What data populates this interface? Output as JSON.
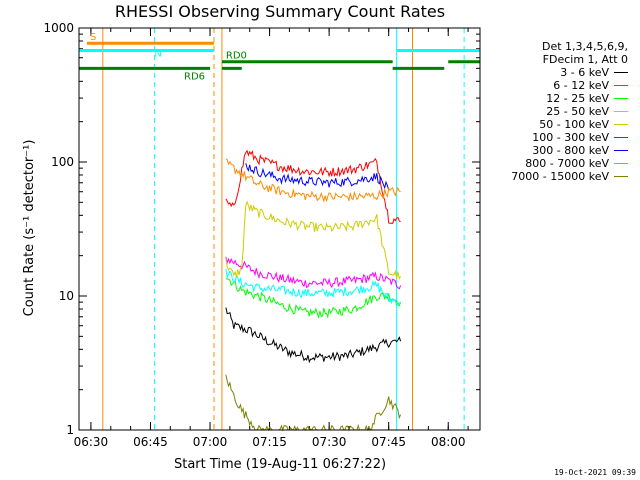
{
  "chart_data": {
    "type": "line",
    "title": "RHESSI Observing Summary Count Rates",
    "xlabel": "Start Time (19-Aug-11 06:27:22)",
    "ylabel": "Count Rate (s⁻¹ detector⁻¹)",
    "y_scale": "log",
    "ylim": [
      1,
      1000
    ],
    "xlim": [
      "06:27",
      "08:08"
    ],
    "x_ticks": [
      "06:30",
      "06:45",
      "07:00",
      "07:15",
      "07:30",
      "07:45",
      "08:00"
    ],
    "y_ticks": [
      "1",
      "10",
      "100",
      "1000"
    ],
    "legend_header": [
      "Det 1,3,4,5,6,9,",
      "FDecim 1, Att 0"
    ],
    "legend_placement": "right",
    "series": [
      {
        "name": "3 - 6 keV",
        "color": "#000000",
        "x": [
          "07:04",
          "07:06",
          "07:10",
          "07:15",
          "07:20",
          "07:25",
          "07:30",
          "07:35",
          "07:40",
          "07:45",
          "07:48"
        ],
        "y": [
          8,
          6,
          5.5,
          4.5,
          3.8,
          3.5,
          3.5,
          3.6,
          4,
          4.5,
          4.6
        ]
      },
      {
        "name": "6 - 12 keV",
        "color": "#ff00ff",
        "x": [
          "07:04",
          "07:08",
          "07:12",
          "07:18",
          "07:24",
          "07:30",
          "07:36",
          "07:42",
          "07:45",
          "07:48"
        ],
        "y": [
          19,
          17,
          15,
          13.5,
          12.5,
          12.5,
          13,
          14,
          13,
          12
        ]
      },
      {
        "name": "12 - 25 keV",
        "color": "#00ff00",
        "x": [
          "07:04",
          "07:08",
          "07:12",
          "07:18",
          "07:24",
          "07:30",
          "07:36",
          "07:42",
          "07:45",
          "07:48"
        ],
        "y": [
          14,
          11,
          10,
          8.5,
          7.5,
          7.5,
          8,
          10,
          10,
          9
        ]
      },
      {
        "name": "25 - 50 keV",
        "color": "#00ffff",
        "x": [
          "07:04",
          "07:08",
          "07:12",
          "07:18",
          "07:24",
          "07:30",
          "07:36",
          "07:42",
          "07:45",
          "07:48"
        ],
        "y": [
          15,
          12.5,
          11.5,
          11,
          10.5,
          10.5,
          11,
          12,
          9.5,
          9
        ]
      },
      {
        "name": "50 - 100 keV",
        "color": "#cccc00",
        "x": [
          "07:04",
          "07:06",
          "07:08",
          "07:09",
          "07:12",
          "07:18",
          "07:24",
          "07:30",
          "07:36",
          "07:42",
          "07:45",
          "07:48"
        ],
        "y": [
          18,
          14,
          16,
          48,
          42,
          36,
          33,
          32,
          33,
          38,
          15,
          14
        ]
      },
      {
        "name": "100 - 300 keV",
        "color": "#ff0000",
        "x": [
          "07:04",
          "07:06",
          "07:09",
          "07:12",
          "07:18",
          "07:24",
          "07:30",
          "07:36",
          "07:42",
          "07:45",
          "07:48"
        ],
        "y": [
          50,
          45,
          120,
          105,
          92,
          85,
          84,
          88,
          100,
          38,
          36
        ]
      },
      {
        "name": "300 - 800 keV",
        "color": "#0000ff",
        "x": [
          "07:09",
          "07:12",
          "07:18",
          "07:24",
          "07:30",
          "07:36",
          "07:42",
          "07:45"
        ],
        "y": [
          95,
          85,
          75,
          72,
          70,
          72,
          78,
          62
        ]
      },
      {
        "name": "800 - 7000 keV",
        "color": "#ff8c00",
        "x": [
          "07:04",
          "07:06",
          "07:09",
          "07:12",
          "07:18",
          "07:24",
          "07:30",
          "07:36",
          "07:42",
          "07:45",
          "07:48"
        ],
        "y": [
          98,
          90,
          78,
          68,
          60,
          56,
          55,
          55,
          56,
          60,
          60
        ]
      },
      {
        "name": "7000 - 15000 keV",
        "color": "#808000",
        "x": [
          "07:04",
          "07:06",
          "07:08",
          "07:12",
          "07:40",
          "07:45",
          "07:48"
        ],
        "y": [
          2.5,
          1.8,
          1.4,
          1,
          1,
          1.7,
          1.3
        ]
      }
    ],
    "markers": {
      "vertical_lines": [
        {
          "time": "06:27",
          "color": "#00ffff",
          "style": "solid"
        },
        {
          "time": "06:33",
          "color": "#ff8c00",
          "style": "solid"
        },
        {
          "time": "06:46",
          "color": "#00ffff",
          "style": "dashed"
        },
        {
          "time": "07:01",
          "color": "#ff8c00",
          "style": "dashed"
        },
        {
          "time": "07:03",
          "color": "#ff8c00",
          "style": "solid"
        },
        {
          "time": "07:47",
          "color": "#00ffff",
          "style": "solid"
        },
        {
          "time": "07:51",
          "color": "#ff8c00",
          "style": "solid"
        },
        {
          "time": "08:04",
          "color": "#00ffff",
          "style": "dashed"
        }
      ],
      "bars": [
        {
          "label": "S",
          "color": "#ff8c00",
          "segments": [
            [
              "06:29",
              "07:01"
            ]
          ],
          "y": 770
        },
        {
          "label": "N",
          "color": "#00ffff",
          "segments": [
            [
              "06:27",
              "07:01"
            ],
            [
              "07:47",
              "08:08"
            ]
          ],
          "y": 680
        },
        {
          "label": "RD0",
          "color": "#008000",
          "segments": [
            [
              "07:03",
              "07:46"
            ],
            [
              "08:00",
              "08:08"
            ]
          ],
          "y": 560
        },
        {
          "label": "RD6",
          "color": "#008000",
          "segments": [
            [
              "06:27",
              "07:00"
            ],
            [
              "07:03",
              "07:08"
            ],
            [
              "07:46",
              "07:59"
            ]
          ],
          "y": 500
        }
      ]
    }
  },
  "footer": {
    "timestamp": "19-Oct-2021 09:39"
  }
}
